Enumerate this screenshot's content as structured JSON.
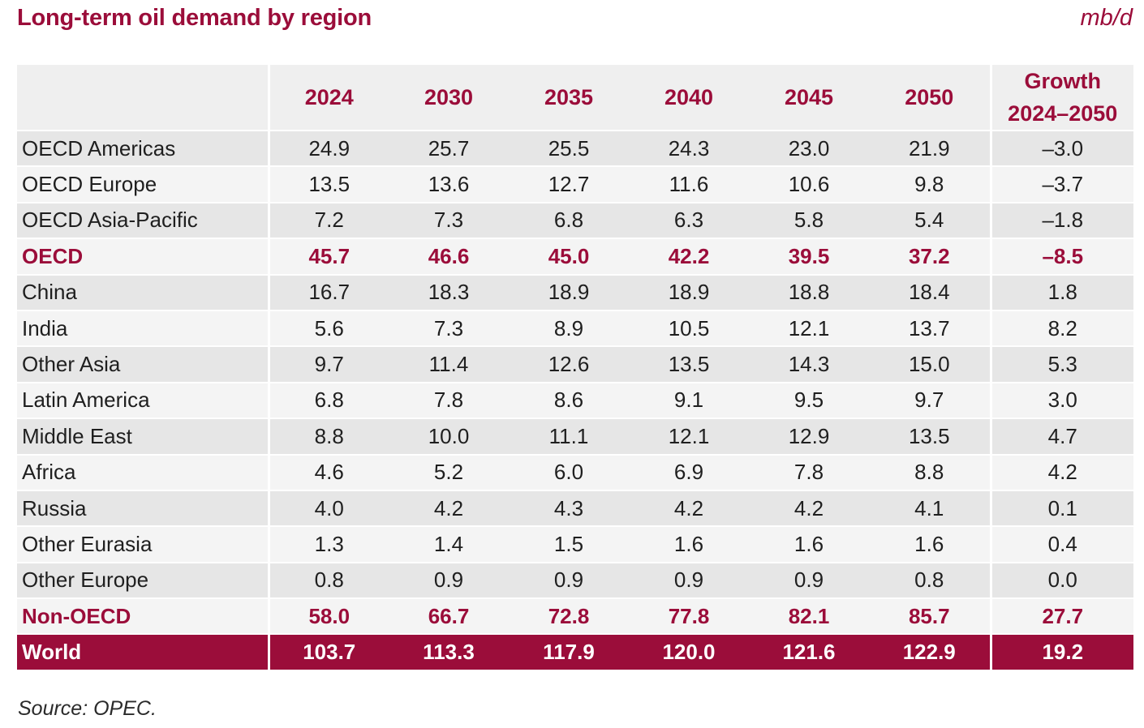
{
  "title": "Long-term oil demand by region",
  "unit": "mb/d",
  "source": "Source: OPEC.",
  "header": {
    "years": [
      "2024",
      "2030",
      "2035",
      "2040",
      "2045",
      "2050"
    ],
    "growth_line1": "Growth",
    "growth_line2": "2024–2050"
  },
  "rows": [
    {
      "region": "OECD Americas",
      "values": [
        "24.9",
        "25.7",
        "25.5",
        "24.3",
        "23.0",
        "21.9"
      ],
      "growth": "–3.0"
    },
    {
      "region": "OECD Europe",
      "values": [
        "13.5",
        "13.6",
        "12.7",
        "11.6",
        "10.6",
        "9.8"
      ],
      "growth": "–3.7"
    },
    {
      "region": "OECD Asia-Pacific",
      "values": [
        "7.2",
        "7.3",
        "6.8",
        "6.3",
        "5.8",
        "5.4"
      ],
      "growth": "–1.8"
    },
    {
      "region": "OECD",
      "values": [
        "45.7",
        "46.6",
        "45.0",
        "42.2",
        "39.5",
        "37.2"
      ],
      "growth": "–8.5"
    },
    {
      "region": "China",
      "values": [
        "16.7",
        "18.3",
        "18.9",
        "18.9",
        "18.8",
        "18.4"
      ],
      "growth": "1.8"
    },
    {
      "region": "India",
      "values": [
        "5.6",
        "7.3",
        "8.9",
        "10.5",
        "12.1",
        "13.7"
      ],
      "growth": "8.2"
    },
    {
      "region": "Other Asia",
      "values": [
        "9.7",
        "11.4",
        "12.6",
        "13.5",
        "14.3",
        "15.0"
      ],
      "growth": "5.3"
    },
    {
      "region": "Latin America",
      "values": [
        "6.8",
        "7.8",
        "8.6",
        "9.1",
        "9.5",
        "9.7"
      ],
      "growth": "3.0"
    },
    {
      "region": "Middle East",
      "values": [
        "8.8",
        "10.0",
        "11.1",
        "12.1",
        "12.9",
        "13.5"
      ],
      "growth": "4.7"
    },
    {
      "region": "Africa",
      "values": [
        "4.6",
        "5.2",
        "6.0",
        "6.9",
        "7.8",
        "8.8"
      ],
      "growth": "4.2"
    },
    {
      "region": "Russia",
      "values": [
        "4.0",
        "4.2",
        "4.3",
        "4.2",
        "4.2",
        "4.1"
      ],
      "growth": "0.1"
    },
    {
      "region": "Other Eurasia",
      "values": [
        "1.3",
        "1.4",
        "1.5",
        "1.6",
        "1.6",
        "1.6"
      ],
      "growth": "0.4"
    },
    {
      "region": "Other Europe",
      "values": [
        "0.8",
        "0.9",
        "0.9",
        "0.9",
        "0.9",
        "0.8"
      ],
      "growth": "0.0"
    },
    {
      "region": "Non-OECD",
      "values": [
        "58.0",
        "66.7",
        "72.8",
        "77.8",
        "82.1",
        "85.7"
      ],
      "growth": "27.7"
    },
    {
      "region": "World",
      "values": [
        "103.7",
        "113.3",
        "117.9",
        "120.0",
        "121.6",
        "122.9"
      ],
      "growth": "19.2"
    }
  ],
  "colors": {
    "accent": "#9b0d3a",
    "row_dark": "#e6e6e6",
    "row_light": "#f4f4f4"
  }
}
